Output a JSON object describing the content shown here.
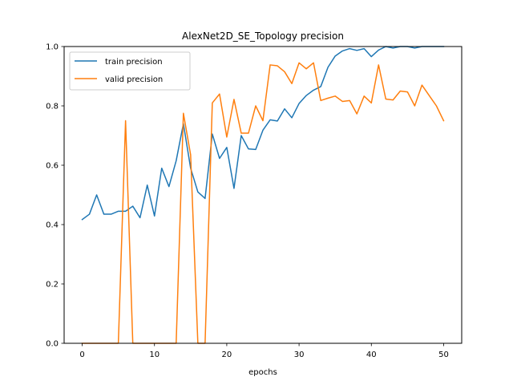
{
  "chart_data": {
    "type": "line",
    "title": "AlexNet2D_SE_Topology precision",
    "xlabel": "epochs",
    "ylabel": "",
    "xlim": [
      -2.5,
      52.5
    ],
    "ylim": [
      0.0,
      1.0
    ],
    "xticks": [
      0,
      10,
      20,
      30,
      40,
      50
    ],
    "yticks": [
      0.0,
      0.2,
      0.4,
      0.6,
      0.8,
      1.0
    ],
    "xtick_labels": [
      "0",
      "10",
      "20",
      "30",
      "40",
      "50"
    ],
    "ytick_labels": [
      "0.0",
      "0.2",
      "0.4",
      "0.6",
      "0.8",
      "1.0"
    ],
    "grid": false,
    "legend_position": "top-left",
    "x": [
      0,
      1,
      2,
      3,
      4,
      5,
      6,
      7,
      8,
      9,
      10,
      11,
      12,
      13,
      14,
      15,
      16,
      17,
      18,
      19,
      20,
      21,
      22,
      23,
      24,
      25,
      26,
      27,
      28,
      29,
      30,
      31,
      32,
      33,
      34,
      35,
      36,
      37,
      38,
      39,
      40,
      41,
      42,
      43,
      44,
      45,
      46,
      47,
      48,
      49,
      50
    ],
    "series": [
      {
        "name": "train precision",
        "color": "#1f77b4",
        "values": [
          0.417,
          0.435,
          0.5,
          0.435,
          0.435,
          0.445,
          0.445,
          0.462,
          0.423,
          0.533,
          0.429,
          0.59,
          0.528,
          0.615,
          0.74,
          0.59,
          0.51,
          0.488,
          0.705,
          0.623,
          0.66,
          0.522,
          0.7,
          0.655,
          0.653,
          0.718,
          0.753,
          0.749,
          0.79,
          0.76,
          0.808,
          0.835,
          0.853,
          0.865,
          0.93,
          0.968,
          0.985,
          0.993,
          0.987,
          0.993,
          0.966,
          0.988,
          1.0,
          0.995,
          1.0,
          1.0,
          0.995,
          1.0,
          1.0,
          1.0,
          1.0
        ]
      },
      {
        "name": "valid precision",
        "color": "#ff7f0e",
        "values": [
          0.0,
          0.0,
          0.0,
          0.0,
          0.0,
          0.0,
          0.75,
          0.0,
          0.0,
          0.0,
          0.0,
          0.0,
          0.0,
          0.0,
          0.775,
          0.635,
          0.0,
          0.0,
          0.81,
          0.84,
          0.695,
          0.822,
          0.708,
          0.708,
          0.8,
          0.75,
          0.938,
          0.935,
          0.915,
          0.875,
          0.945,
          0.925,
          0.945,
          0.818,
          0.826,
          0.833,
          0.815,
          0.818,
          0.773,
          0.833,
          0.81,
          0.938,
          0.823,
          0.82,
          0.85,
          0.847,
          0.8,
          0.87,
          0.835,
          0.8,
          0.75
        ]
      }
    ]
  }
}
